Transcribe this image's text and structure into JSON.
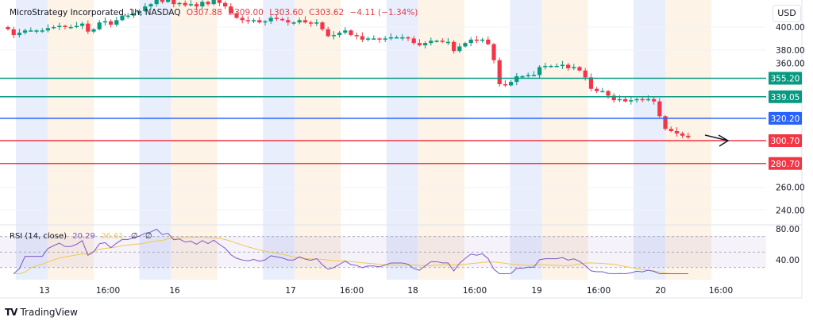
{
  "header": {
    "symbol": "MicroStrategy Incorporated, 1h, NASDAQ",
    "open": "O307.88",
    "high": "H309.00",
    "low": "L303.60",
    "close": "C303.62",
    "change": "−4.11 (−1.34%)",
    "currency": "USD"
  },
  "rsi": {
    "label": "RSI (14, close)",
    "value": "20.29",
    "ma_value": "26.61",
    "extra1": "∅",
    "extra2": "∅",
    "axis_labels": [
      "80.00",
      "40.00"
    ]
  },
  "price_axis": [
    "400.00",
    "380.00",
    "360.00",
    "260.00",
    "240.00"
  ],
  "levels": [
    {
      "label": "355.20",
      "price": 355.2,
      "color": "#089981"
    },
    {
      "label": "339.05",
      "price": 339.05,
      "color": "#089981"
    },
    {
      "label": "320.20",
      "price": 320.2,
      "color": "#2962ff"
    },
    {
      "label": "300.70",
      "price": 300.7,
      "color": "#f23645"
    },
    {
      "label": "280.70",
      "price": 280.7,
      "color": "#f23645"
    }
  ],
  "time_axis": [
    "13",
    "16:00",
    "16",
    "17",
    "16:00",
    "18",
    "16:00",
    "19",
    "16:00",
    "20",
    "16:00"
  ],
  "brand": "TradingView",
  "colors": {
    "up": "#089981",
    "down": "#f23645",
    "rsi": "#7e57c2",
    "rsi_ma": "#f2c94c",
    "premarket": "#e8eefc",
    "afterhours": "#fdf3e6"
  },
  "chart_data": {
    "type": "candlestick",
    "title": "MicroStrategy Incorporated, 1h, NASDAQ",
    "ylim": [
      225,
      420
    ],
    "closes": [
      398,
      393,
      395,
      397,
      397,
      397,
      397,
      399,
      400,
      401,
      400,
      400,
      401,
      403,
      396,
      398,
      404,
      405,
      402,
      406,
      410,
      410,
      412,
      414,
      418,
      420,
      425,
      422,
      424,
      420,
      421,
      419,
      420,
      418,
      422,
      420,
      424,
      421,
      418,
      412,
      408,
      406,
      405,
      406,
      404,
      405,
      408,
      407,
      406,
      404,
      404,
      406,
      404,
      403,
      404,
      398,
      392,
      393,
      395,
      397,
      393,
      392,
      389,
      390,
      390,
      389,
      390,
      391,
      391,
      391,
      390,
      386,
      384,
      386,
      388,
      388,
      387,
      387,
      379,
      383,
      386,
      389,
      388,
      389,
      385,
      371,
      350,
      349,
      352,
      357,
      357,
      358,
      358,
      365,
      366,
      366,
      366,
      367,
      364,
      365,
      362,
      356,
      346,
      344,
      344,
      340,
      336,
      337,
      335,
      336,
      337,
      336,
      337,
      335,
      322,
      311,
      309,
      307,
      305,
      303.6
    ],
    "rsi_ylim": [
      20,
      90
    ]
  }
}
